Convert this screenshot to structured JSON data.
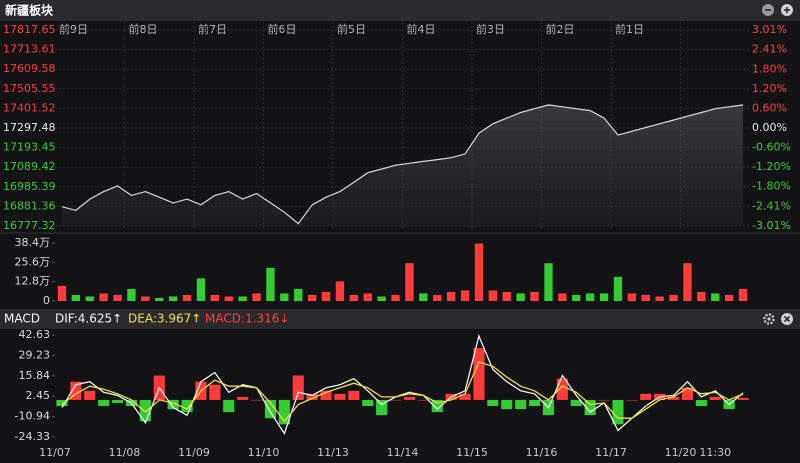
{
  "header": {
    "title": "新疆板块"
  },
  "chart_data": [
    {
      "type": "line",
      "day_labels": [
        "前9日",
        "前8日",
        "前7日",
        "前6日",
        "前5日",
        "前4日",
        "前3日",
        "前2日",
        "前1日"
      ],
      "values": [
        16880,
        16860,
        16920,
        16960,
        16990,
        16940,
        16960,
        16930,
        16900,
        16920,
        16890,
        16940,
        16960,
        16920,
        16950,
        16900,
        16850,
        16790,
        16890,
        16930,
        16960,
        17010,
        17060,
        17080,
        17100,
        17110,
        17120,
        17130,
        17140,
        17160,
        17270,
        17320,
        17350,
        17380,
        17400,
        17420,
        17410,
        17400,
        17390,
        17350,
        17260,
        17280,
        17300,
        17320,
        17340,
        17360,
        17380,
        17400,
        17410,
        17420
      ],
      "color": "#d8d8dc",
      "ylim": [
        16777.32,
        17817.65
      ],
      "yticks": [
        16777.32,
        16881.36,
        16985.39,
        17089.42,
        17193.45,
        17297.48,
        17401.52,
        17505.55,
        17609.58,
        17713.61,
        17817.65
      ],
      "y2lim": [
        -3.01,
        3.01
      ],
      "y2ticks": [
        {
          "value": -3.01,
          "label": "-3.01%"
        },
        {
          "value": -2.41,
          "label": "-2.41%"
        },
        {
          "value": -1.8,
          "label": "-1.80%"
        },
        {
          "value": -1.2,
          "label": "-1.20%"
        },
        {
          "value": -0.6,
          "label": "-0.60%"
        },
        {
          "value": 0,
          "label": "0.00%"
        },
        {
          "value": 0.6,
          "label": "0.60%"
        },
        {
          "value": 1.2,
          "label": "1.20%"
        },
        {
          "value": 1.8,
          "label": "1.80%"
        },
        {
          "value": 2.41,
          "label": "2.41%"
        },
        {
          "value": 3.01,
          "label": "3.01%"
        }
      ],
      "up_color": "#ff3b3b",
      "down_color": "#33cc33",
      "grid": true
    },
    {
      "type": "bar",
      "values": [
        10,
        4,
        3,
        5,
        4,
        8,
        3,
        2,
        3,
        4,
        15,
        4,
        3,
        3,
        5,
        22,
        5,
        8,
        4,
        6,
        13,
        4,
        5,
        3,
        4,
        25,
        5,
        4,
        6,
        7,
        38,
        7,
        6,
        5,
        6,
        25,
        5,
        4,
        5,
        5,
        16,
        5,
        4,
        3,
        4,
        25,
        6,
        5,
        4,
        8
      ],
      "colors": [
        "#ff3b3b",
        "#33cc33",
        "#33cc33",
        "#ff3b3b",
        "#ff3b3b",
        "#33cc33",
        "#ff3b3b",
        "#33cc33",
        "#33cc33",
        "#ff3b3b",
        "#33cc33",
        "#ff3b3b",
        "#ff3b3b",
        "#33cc33",
        "#ff3b3b",
        "#33cc33",
        "#33cc33",
        "#33cc33",
        "#ff3b3b",
        "#ff3b3b",
        "#ff3b3b",
        "#ff3b3b",
        "#ff3b3b",
        "#33cc33",
        "#ff3b3b",
        "#ff3b3b",
        "#33cc33",
        "#ff3b3b",
        "#ff3b3b",
        "#ff3b3b",
        "#ff3b3b",
        "#ff3b3b",
        "#ff3b3b",
        "#33cc33",
        "#ff3b3b",
        "#33cc33",
        "#ff3b3b",
        "#33cc33",
        "#33cc33",
        "#33cc33",
        "#33cc33",
        "#ff3b3b",
        "#ff3b3b",
        "#ff3b3b",
        "#ff3b3b",
        "#ff3b3b",
        "#ff3b3b",
        "#33cc33",
        "#ff3b3b",
        "#ff3b3b"
      ],
      "ylim": [
        0,
        38.4
      ],
      "yticks": [
        0,
        {
          "value": 12.8,
          "label": "12.8万"
        },
        {
          "value": 25.6,
          "label": "25.6万"
        },
        {
          "value": 38.4,
          "label": "38.4万"
        }
      ]
    },
    {
      "type": "macd",
      "title": "MACD",
      "series": [
        {
          "name": "DIF:4.625↑",
          "color": "#f2f2f2",
          "kind": "line",
          "values": [
            -5,
            10,
            12,
            5,
            3,
            -2,
            -15,
            8,
            -5,
            -10,
            12,
            18,
            5,
            10,
            8,
            -8,
            -22,
            5,
            3,
            8,
            10,
            14,
            6,
            -3,
            2,
            5,
            3,
            -6,
            2,
            6,
            42,
            20,
            12,
            6,
            4,
            -5,
            16,
            3,
            -8,
            -2,
            -20,
            -12,
            -4,
            2,
            3,
            12,
            2,
            6,
            -3,
            4.625
          ]
        },
        {
          "name": "DEA:3.967↑",
          "color": "#f0e040",
          "kind": "line",
          "values": [
            -3,
            4,
            9,
            7,
            4,
            0,
            -8,
            0,
            -2,
            -6,
            6,
            13,
            9,
            9,
            8,
            -2,
            -14,
            -3,
            1,
            5,
            8,
            11,
            8,
            2,
            2,
            4,
            3,
            -2,
            0,
            4,
            25,
            22,
            15,
            9,
            6,
            0,
            9,
            5,
            -3,
            -2,
            -12,
            -12,
            -6,
            0,
            2,
            8,
            4,
            5,
            0,
            3.967
          ]
        },
        {
          "name": "MACD:1.316↓",
          "color": "#ff3b3b",
          "kind": "bar",
          "values": [
            -4,
            12,
            6,
            -4,
            -2,
            -4,
            -14,
            16,
            -6,
            -8,
            12,
            10,
            -8,
            2,
            0,
            -12,
            -16,
            16,
            4,
            6,
            4,
            6,
            -4,
            -10,
            0,
            2,
            0,
            -8,
            4,
            4,
            34,
            -4,
            -6,
            -6,
            -4,
            -10,
            14,
            -4,
            -10,
            0,
            -16,
            0,
            4,
            4,
            2,
            8,
            -4,
            2,
            -6,
            1.316
          ]
        }
      ],
      "ylim": [
        -24.33,
        42.63
      ],
      "yticks": [
        -24.33,
        -10.94,
        2.45,
        15.84,
        29.23,
        42.63
      ],
      "x_labels": [
        "11/07",
        "11/08",
        "11/09",
        "11/10",
        "11/13",
        "11/14",
        "11/15",
        "11/16",
        "11/17",
        "11/20",
        "11:30"
      ],
      "up_color": "#ff3b3b",
      "down_color": "#33cc33"
    }
  ]
}
